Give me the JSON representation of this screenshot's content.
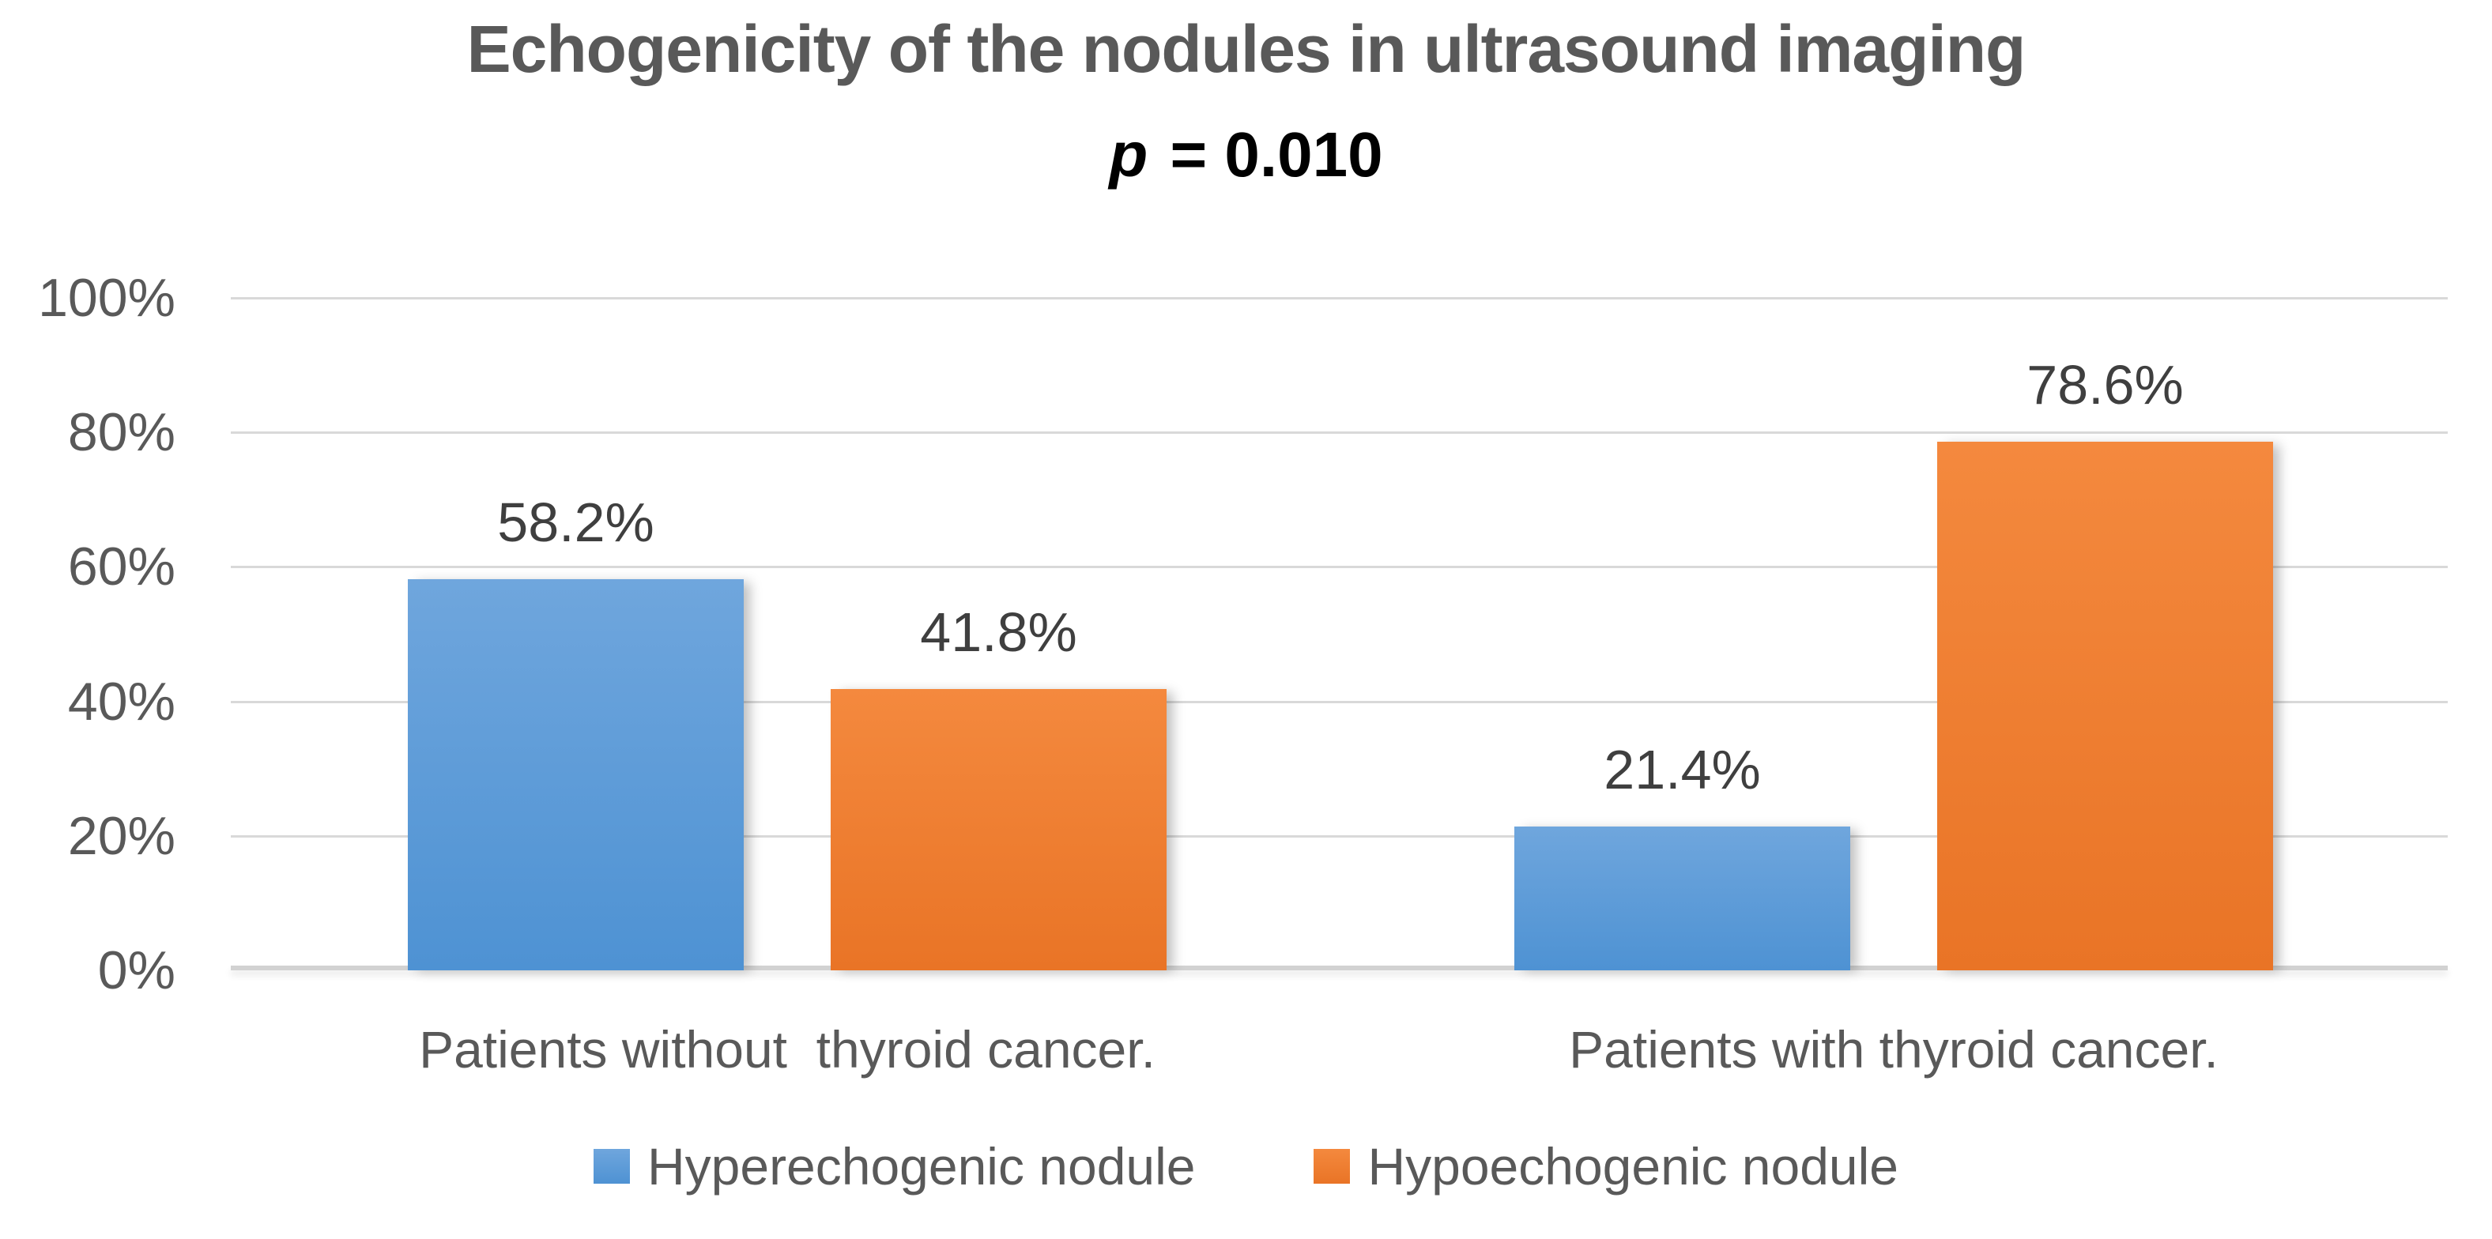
{
  "title": "Echogenicity of the nodules in ultrasound imaging",
  "subtitle": {
    "p_symbol": "p",
    "rest": " = 0.010"
  },
  "colors": {
    "series_blue": "#5B9BD5",
    "series_blue_top": "#6FA6DD",
    "series_blue_bottom": "#4E92D3",
    "series_orange": "#ED7D31",
    "series_orange_top": "#F4893E",
    "series_orange_bottom": "#E97426",
    "gridline": "#D9D9D9",
    "axis_line": "#D2D2D2",
    "title_text": "#595959",
    "axis_text": "#595959",
    "data_label_text": "#3F3F3F"
  },
  "chart_data": {
    "type": "bar",
    "title": "Echogenicity of the nodules in ultrasound imaging",
    "subtitle": "p = 0.010",
    "categories": [
      "Patients without  thyroid cancer.",
      "Patients with thyroid cancer."
    ],
    "series": [
      {
        "name": "Hyperechogenic nodule",
        "color": "#5B9BD5",
        "values": [
          58.2,
          21.4
        ]
      },
      {
        "name": "Hypoechogenic nodule",
        "color": "#ED7D31",
        "values": [
          41.8,
          78.6
        ]
      }
    ],
    "value_labels": [
      [
        "58.2%",
        "41.8%"
      ],
      [
        "21.4%",
        "78.6%"
      ]
    ],
    "ylim": [
      0,
      100
    ],
    "ytick_step": 20,
    "ytick_labels": [
      "0%",
      "20%",
      "40%",
      "60%",
      "80%",
      "100%"
    ],
    "grid": true,
    "legend_position": "bottom"
  }
}
